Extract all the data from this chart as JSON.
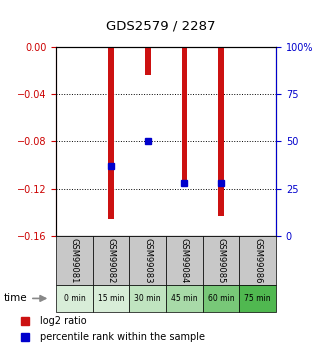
{
  "title": "GDS2579 / 2287",
  "samples": [
    "GSM99081",
    "GSM99082",
    "GSM99083",
    "GSM99084",
    "GSM99085",
    "GSM99086"
  ],
  "time_labels": [
    "0 min",
    "15 min",
    "30 min",
    "45 min",
    "60 min",
    "75 min"
  ],
  "time_bg_colors": [
    "#d8edd8",
    "#d8edd8",
    "#c0e4c0",
    "#a8daa8",
    "#78c878",
    "#50b850"
  ],
  "log2_ratio": [
    0.0,
    -0.145,
    -0.024,
    -0.115,
    -0.143,
    0.0
  ],
  "percentile_rank": [
    null,
    37,
    50,
    28,
    28,
    null
  ],
  "left_ylim": [
    -0.16,
    0.0
  ],
  "right_ylim": [
    0,
    100
  ],
  "left_yticks": [
    0.0,
    -0.04,
    -0.08,
    -0.12,
    -0.16
  ],
  "right_yticks": [
    0,
    25,
    50,
    75,
    100
  ],
  "bar_color": "#cc1111",
  "point_color": "#0000cc",
  "left_axis_color": "#cc0000",
  "right_axis_color": "#0000cc",
  "grid_color": "#000000",
  "sample_bg_color": "#c8c8c8",
  "legend_red_label": "log2 ratio",
  "legend_blue_label": "percentile rank within the sample",
  "bar_width": 0.15
}
